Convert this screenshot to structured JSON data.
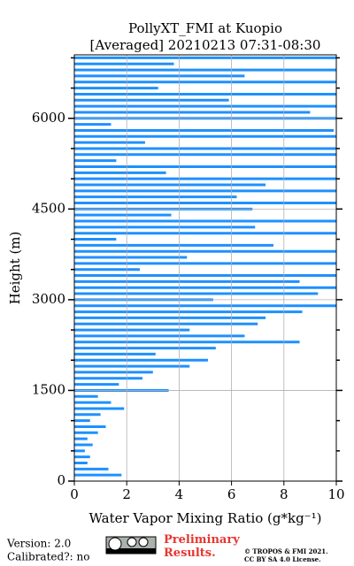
{
  "chart_data": {
    "type": "profile",
    "title": "PollyXT_FMI at Kuopio",
    "subtitle": "[Averaged] 20210213 07:31-08:30",
    "xlabel": "Water Vapor Mixing Ratio (g*kg⁻¹)",
    "ylabel": "Height (m)",
    "color": "#1e90ff",
    "heights": [
      100,
      200,
      300,
      400,
      500,
      600,
      700,
      800,
      900,
      1000,
      1100,
      1200,
      1300,
      1400,
      1500,
      1600,
      1700,
      1800,
      1900,
      2000,
      2100,
      2200,
      2300,
      2400,
      2500,
      2600,
      2700,
      2800,
      2900,
      3000,
      3100,
      3200,
      3300,
      3400,
      3500,
      3600,
      3700,
      3800,
      3900,
      4000,
      4100,
      4200,
      4300,
      4400,
      4500,
      4600,
      4700,
      4800,
      4900,
      5000,
      5100,
      5200,
      5300,
      5400,
      5500,
      5600,
      5700,
      5800,
      5900,
      6000,
      6100,
      6200,
      6300,
      6400,
      6500,
      6600,
      6700,
      6800,
      6900,
      7000
    ],
    "values": [
      1.8,
      1.3,
      0.5,
      0.6,
      0.4,
      0.7,
      0.5,
      0.9,
      1.2,
      0.6,
      1.0,
      1.9,
      1.4,
      0.9,
      3.6,
      1.7,
      2.6,
      3.0,
      4.4,
      5.1,
      3.1,
      5.4,
      8.6,
      6.5,
      4.4,
      7.0,
      7.3,
      8.7,
      10,
      5.3,
      9.3,
      10,
      8.6,
      10,
      2.5,
      10,
      4.3,
      10,
      7.6,
      1.6,
      10,
      6.9,
      10,
      3.7,
      6.8,
      10,
      6.2,
      10,
      7.3,
      10,
      3.5,
      10,
      1.6,
      10,
      10,
      2.7,
      10,
      9.9,
      1.4,
      10,
      9.0,
      10,
      5.9,
      10,
      3.2,
      10,
      6.5,
      10,
      3.8,
      10
    ],
    "xlim": [
      0,
      10
    ],
    "xticks": [
      0,
      2,
      4,
      6,
      8,
      10
    ],
    "ylim": [
      0,
      7050
    ],
    "yticks": [
      0,
      1500,
      3000,
      4500,
      6000
    ],
    "yminorticks": [
      500,
      1000,
      2000,
      2500,
      3500,
      4000,
      5000,
      5500,
      6500,
      7000
    ],
    "grid": true
  },
  "footer": {
    "version": "Version: 2.0",
    "calibrated": "Calibrated?: no",
    "status": "Preliminary Results.",
    "copyright": "© TROPOS & FMI 2021.",
    "license": "CC BY SA 4.0 License."
  }
}
